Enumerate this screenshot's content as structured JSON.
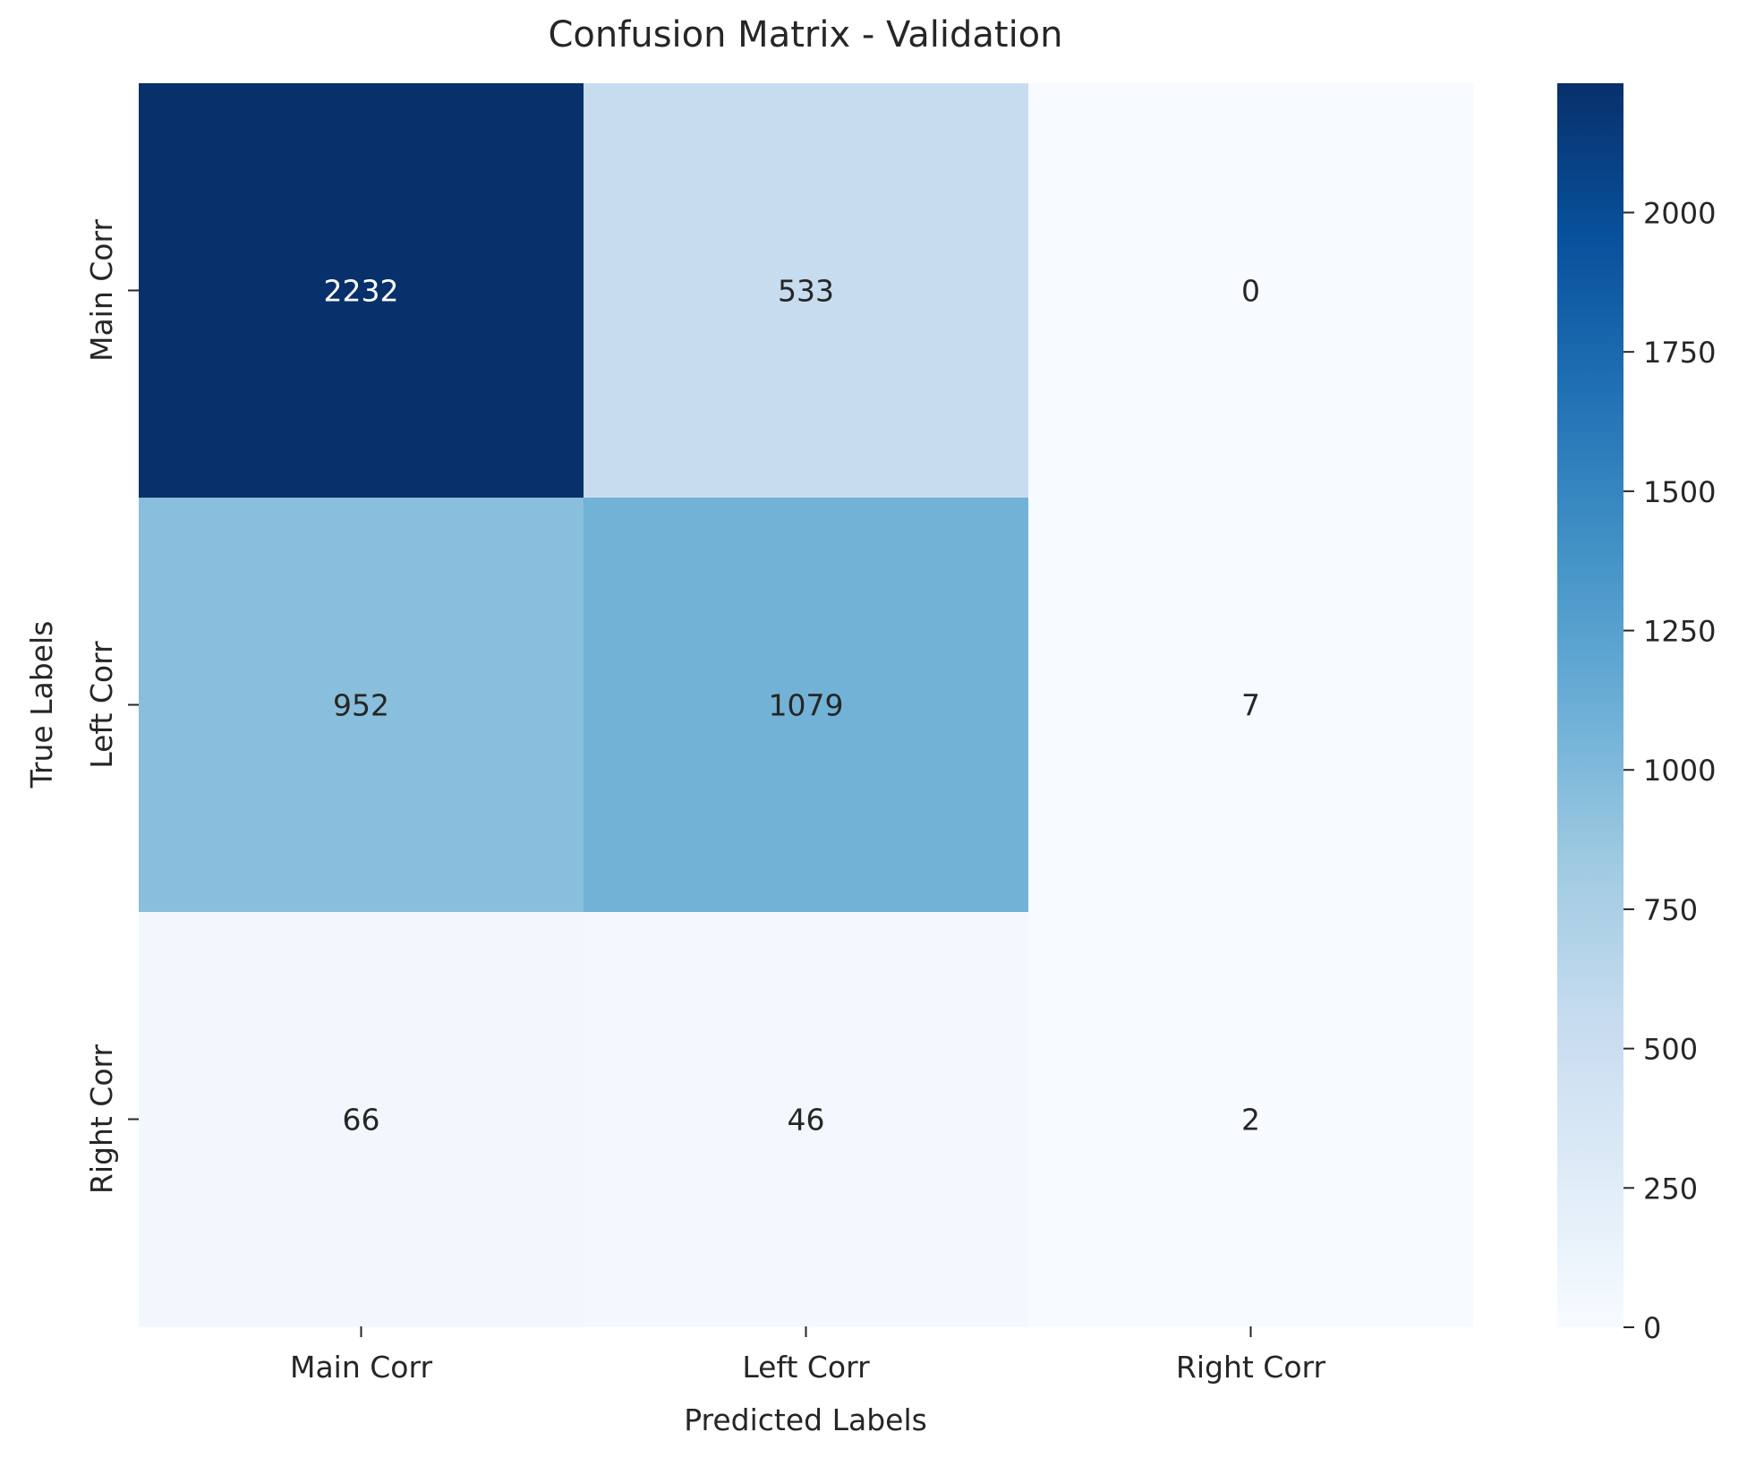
{
  "chart_data": {
    "type": "heatmap",
    "title": "Confusion Matrix - Validation",
    "xlabel": "Predicted Labels",
    "ylabel": "True Labels",
    "x_categories": [
      "Main Corr",
      "Left Corr",
      "Right Corr"
    ],
    "y_categories": [
      "Main Corr",
      "Left Corr",
      "Right Corr"
    ],
    "values": [
      [
        2232,
        533,
        0
      ],
      [
        952,
        1079,
        7
      ],
      [
        66,
        46,
        2
      ]
    ],
    "colormap": "Blues",
    "color_range": [
      0,
      2232
    ],
    "colorbar_ticks": [
      0,
      250,
      500,
      750,
      1000,
      1250,
      1500,
      1750,
      2000
    ],
    "colorbar_tick_labels": [
      "0",
      "250",
      "500",
      "750",
      "1000",
      "1250",
      "1500",
      "1750",
      "2000"
    ],
    "colorbar_placement": "right",
    "grid": false
  }
}
